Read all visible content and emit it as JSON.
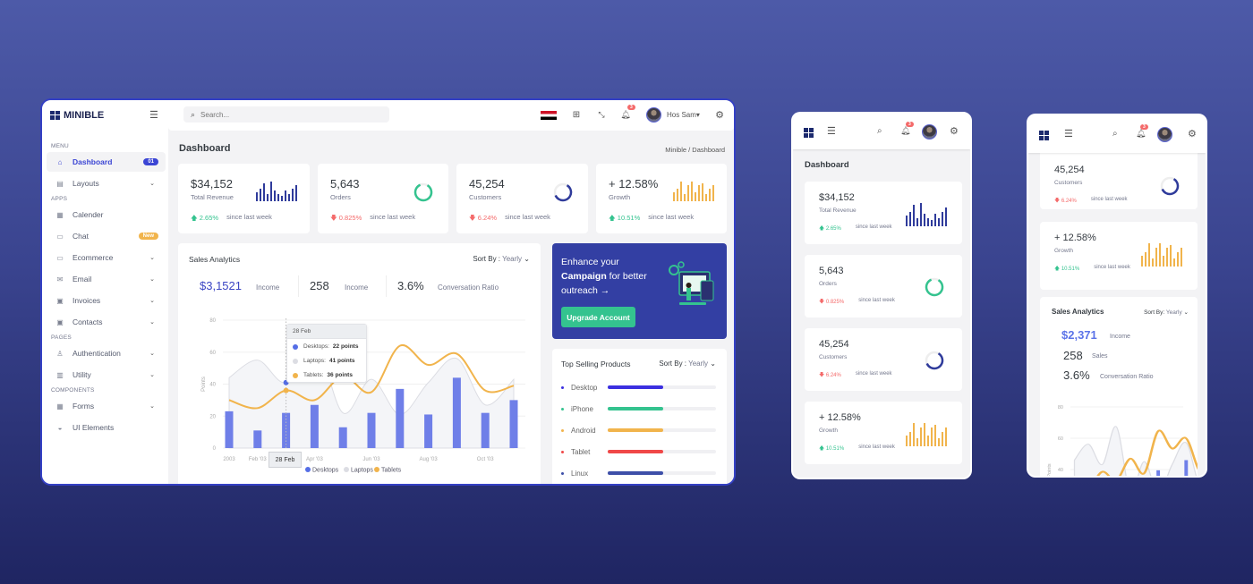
{
  "colors": {
    "primary": "#3b45d4",
    "success": "#34c38f",
    "danger": "#f46a6a",
    "warning": "#f1b44c",
    "navy": "#2f3b9b",
    "campaign_bg": "#333fa3"
  },
  "brand": {
    "name": "MINIBLE"
  },
  "sidebar": {
    "sections": [
      {
        "title": "MENU",
        "items": [
          {
            "label": "Dashboard",
            "icon": "home-icon",
            "badge": "01",
            "active": true
          },
          {
            "label": "Layouts",
            "icon": "layout-icon",
            "chevron": true
          }
        ]
      },
      {
        "title": "APPS",
        "items": [
          {
            "label": "Calender",
            "icon": "calendar-icon"
          },
          {
            "label": "Chat",
            "icon": "chat-icon",
            "badge": "New"
          },
          {
            "label": "Ecommerce",
            "icon": "monitor-icon",
            "chevron": true
          },
          {
            "label": "Email",
            "icon": "mail-icon",
            "chevron": true
          },
          {
            "label": "Invoices",
            "icon": "invoice-icon",
            "chevron": true
          },
          {
            "label": "Contacts",
            "icon": "contacts-icon",
            "chevron": true
          }
        ]
      },
      {
        "title": "PAGES",
        "items": [
          {
            "label": "Authentication",
            "icon": "user-icon",
            "chevron": true
          },
          {
            "label": "Utility",
            "icon": "utility-icon",
            "chevron": true
          }
        ]
      },
      {
        "title": "COMPONENTS",
        "items": [
          {
            "label": "Forms",
            "icon": "forms-icon",
            "chevron": true
          },
          {
            "label": "UI Elements",
            "icon": "ui-elements-icon"
          }
        ]
      }
    ]
  },
  "topbar": {
    "search_placeholder": "Search...",
    "user_name": "Hos Sam",
    "notification_count": "3"
  },
  "page": {
    "title": "Dashboard",
    "breadcrumb": "Minible / Dashboard"
  },
  "stats": [
    {
      "value": "$34,152",
      "label": "Total Revenue",
      "change": "2.65%",
      "direction": "up",
      "since": "since last week",
      "widget": "bars",
      "color": "#2f3b9b",
      "spark": [
        5,
        7,
        10,
        4,
        11,
        6,
        4,
        3,
        6,
        4,
        7,
        9
      ]
    },
    {
      "value": "5,643",
      "label": "Orders",
      "change": "0.825%",
      "direction": "down",
      "since": "since last week",
      "widget": "donut",
      "color": "#34c38f",
      "progress": 0.85
    },
    {
      "value": "45,254",
      "label": "Customers",
      "change": "6.24%",
      "direction": "down",
      "since": "since last week",
      "widget": "donut",
      "color": "#2f3b9b",
      "progress": 0.6
    },
    {
      "value": "+ 12.58%",
      "label": "Growth",
      "change": "10.51%",
      "direction": "up",
      "since": "since last week",
      "widget": "bars",
      "color": "#f1b44c",
      "spark": [
        5,
        7,
        11,
        4,
        9,
        11,
        5,
        9,
        10,
        4,
        7,
        9
      ]
    }
  ],
  "sales": {
    "title": "Sales Analytics",
    "sort_label": "Sort By :",
    "sort_value": "Yearly",
    "metrics": [
      {
        "value": "$3,1521",
        "label": "Income"
      },
      {
        "value": "258",
        "label": "Income"
      },
      {
        "value": "3.6%",
        "label": "Conversation Ratio"
      }
    ]
  },
  "chart_data": {
    "type": "bar+line+area",
    "ylabel": "Points",
    "ylim": [
      0,
      80
    ],
    "yticks": [
      0,
      20,
      40,
      60,
      80
    ],
    "x_tick_labels": [
      "2003",
      "Feb '03",
      "",
      "Apr '03",
      "",
      "Jun '03",
      "",
      "Aug '03",
      "",
      "Oct '03",
      ""
    ],
    "series": [
      {
        "name": "Desktops",
        "type": "bar",
        "color": "#6f7fe8",
        "values": [
          23,
          11,
          22,
          27,
          13,
          22,
          37,
          21,
          44,
          22,
          30
        ]
      },
      {
        "name": "Laptops",
        "type": "area",
        "color": "#dcdde3",
        "values": [
          44,
          55,
          41,
          67,
          22,
          43,
          21,
          41,
          56,
          27,
          43
        ]
      },
      {
        "name": "Tablets",
        "type": "line",
        "color": "#f1b44c",
        "values": [
          30,
          25,
          36,
          30,
          45,
          35,
          64,
          52,
          59,
          36,
          39
        ]
      }
    ],
    "tooltip": {
      "title": "28 Feb",
      "rows": [
        {
          "name": "Desktops",
          "value": "22 points",
          "color": "#556ee6"
        },
        {
          "name": "Laptops",
          "value": "41 points",
          "color": "#dcdde3"
        },
        {
          "name": "Tablets",
          "value": "36 points",
          "color": "#f1b44c"
        }
      ]
    },
    "crosshair_label": "28 Feb",
    "legend": [
      "Desktops",
      "Laptops",
      "Tablets"
    ],
    "legend_position": "bottom"
  },
  "campaign": {
    "line1": "Enhance your",
    "bold": "Campaign",
    "line2": " for better",
    "line3": "outreach →",
    "button": "Upgrade Account"
  },
  "top_selling": {
    "title": "Top Selling Products",
    "sort_label": "Sort By :",
    "sort_value": "Yearly",
    "items": [
      {
        "name": "Desktop",
        "color": "#3b2fe0",
        "progress": 0.51
      },
      {
        "name": "iPhone",
        "color": "#34c38f",
        "progress": 0.51
      },
      {
        "name": "Android",
        "color": "#f1b44c",
        "progress": 0.51
      },
      {
        "name": "Tablet",
        "color": "#f04848",
        "progress": 0.51
      },
      {
        "name": "Linux",
        "color": "#3d4fa8",
        "progress": 0.51
      }
    ]
  },
  "mobile2_sales": {
    "title": "Sales Analytics",
    "sort_label": "Sort By:",
    "sort_value": "Yearly",
    "metrics": [
      {
        "value": "$2,371",
        "label": "Income"
      },
      {
        "value": "258",
        "label": "Sales"
      },
      {
        "value": "3.6%",
        "label": "Conversation Ratio"
      }
    ],
    "yticks": [
      "80",
      "60",
      "40"
    ],
    "ylabel": "Points"
  }
}
